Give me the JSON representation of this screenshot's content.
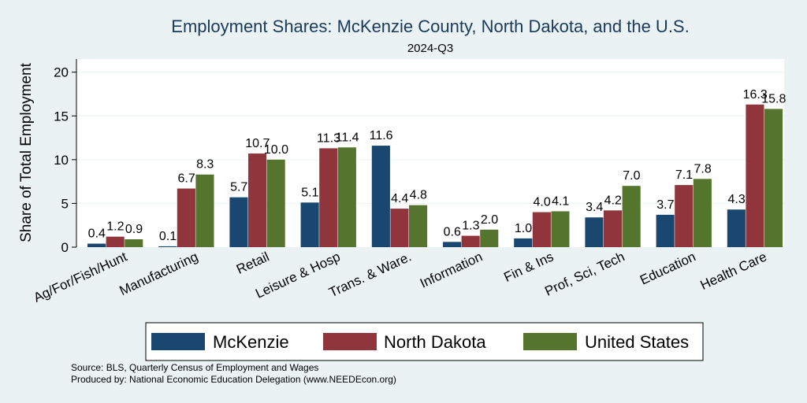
{
  "chart_data": {
    "type": "bar",
    "title": "Employment Shares: McKenzie County, North Dakota, and the U.S.",
    "subtitle": "2024-Q3",
    "ylabel": "Share of Total Employment",
    "xlabel": "",
    "ylim": [
      0,
      21.5
    ],
    "yticks": [
      0,
      5,
      10,
      15,
      20
    ],
    "grid": true,
    "legend_position": "bottom",
    "categories": [
      "Ag/For/Fish/Hunt",
      "Manufacturing",
      "Retail",
      "Leisure & Hosp",
      "Trans. & Ware.",
      "Information",
      "Fin & Ins",
      "Prof, Sci, Tech",
      "Education",
      "Health Care"
    ],
    "series": [
      {
        "name": "McKenzie",
        "color": "#1a476f",
        "values": [
          0.4,
          0.1,
          5.7,
          5.1,
          11.6,
          0.6,
          1.0,
          3.4,
          3.7,
          4.3
        ],
        "labels": [
          "0.4",
          "0.1",
          "5.7",
          "5.1",
          "11.6",
          "0.6",
          "1.0",
          "3.4",
          "3.7",
          "4.3"
        ]
      },
      {
        "name": "North Dakota",
        "color": "#90353b",
        "values": [
          1.2,
          6.7,
          10.7,
          11.3,
          4.4,
          1.3,
          4.0,
          4.2,
          7.1,
          16.3
        ],
        "labels": [
          "1.2",
          "6.7",
          "10.7",
          "11.3",
          "4.4",
          "1.3",
          "4.0",
          "4.2",
          "7.1",
          "16.3"
        ]
      },
      {
        "name": "United States",
        "color": "#55752f",
        "values": [
          0.9,
          8.3,
          10.0,
          11.4,
          4.8,
          2.0,
          4.1,
          7.0,
          7.8,
          15.8
        ],
        "labels": [
          "0.9",
          "8.3",
          "10.0",
          "11.4",
          "4.8",
          "2.0",
          "4.1",
          "7.0",
          "7.8",
          "15.8"
        ]
      }
    ]
  },
  "notes": {
    "source": "Source: BLS, Quarterly Census of Employment and Wages",
    "produced": "Produced by: National Economic Education Delegation (www.NEEDEcon.org)"
  }
}
